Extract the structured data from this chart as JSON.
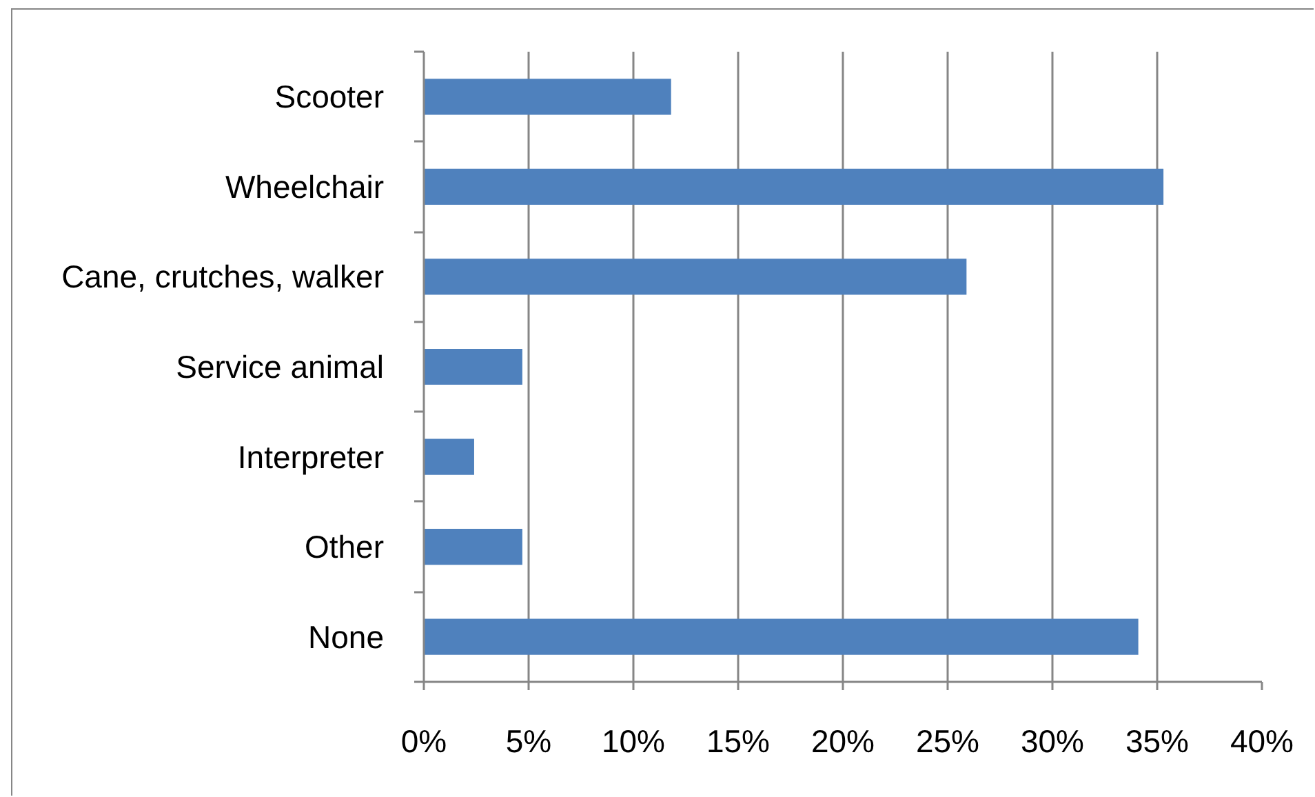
{
  "chart_data": {
    "type": "bar",
    "orientation": "horizontal",
    "categories": [
      "Scooter",
      "Wheelchair",
      "Cane, crutches, walker",
      "Service animal",
      "Interpreter",
      "Other",
      "None"
    ],
    "values": [
      11.8,
      35.3,
      25.9,
      4.7,
      2.4,
      4.7,
      34.1
    ],
    "color": "#4f81bd",
    "xlim": [
      0,
      40
    ],
    "xticks": [
      {
        "value": 0,
        "label": "0%"
      },
      {
        "value": 5,
        "label": "5%"
      },
      {
        "value": 10,
        "label": "10%"
      },
      {
        "value": 15,
        "label": "15%"
      },
      {
        "value": 20,
        "label": "20%"
      },
      {
        "value": 25,
        "label": "25%"
      },
      {
        "value": 30,
        "label": "30%"
      },
      {
        "value": 35,
        "label": "35%"
      },
      {
        "value": 40,
        "label": "40%"
      }
    ],
    "grid": "x"
  }
}
